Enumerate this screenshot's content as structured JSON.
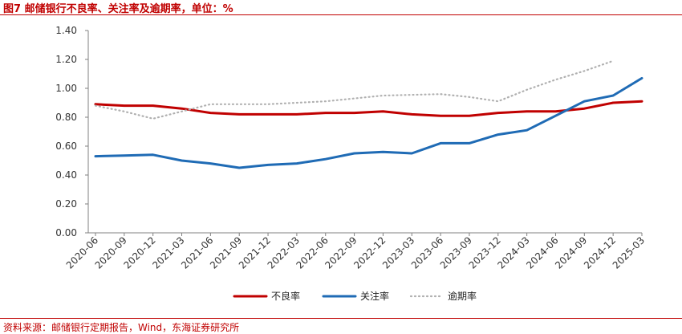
{
  "header": {
    "title": "图7 邮储银行不良率、关注率及逾期率，单位：%"
  },
  "footer": {
    "source": "资料来源：邮储银行定期报告，Wind，东海证券研究所"
  },
  "colors": {
    "npl": "#c00000",
    "attention": "#1f6bb5",
    "overdue": "#b0b0b0",
    "accent": "#c00000"
  },
  "chart_data": {
    "type": "line",
    "title": "图7 邮储银行不良率、关注率及逾期率，单位：%",
    "xlabel": "",
    "ylabel": "",
    "ylim": [
      0,
      1.4
    ],
    "yticks": [
      "0.00",
      "0.20",
      "0.40",
      "0.60",
      "0.80",
      "1.00",
      "1.20",
      "1.40"
    ],
    "grid": false,
    "legend_position": "bottom",
    "categories": [
      "2020-06",
      "2020-09",
      "2020-12",
      "2021-03",
      "2021-06",
      "2021-09",
      "2021-12",
      "2022-03",
      "2022-06",
      "2022-09",
      "2022-12",
      "2023-03",
      "2023-06",
      "2023-09",
      "2023-12",
      "2024-03",
      "2024-06",
      "2024-09",
      "2024-12",
      "2025-03"
    ],
    "series": [
      {
        "name": "不良率",
        "style": "solid",
        "color": "#c00000",
        "values": [
          0.89,
          0.88,
          0.88,
          0.86,
          0.83,
          0.82,
          0.82,
          0.82,
          0.83,
          0.83,
          0.84,
          0.82,
          0.81,
          0.81,
          0.83,
          0.84,
          0.84,
          0.86,
          0.9,
          0.91
        ]
      },
      {
        "name": "关注率",
        "style": "solid",
        "color": "#1f6bb5",
        "values": [
          0.53,
          0.535,
          0.54,
          0.5,
          0.48,
          0.45,
          0.47,
          0.48,
          0.51,
          0.55,
          0.56,
          0.55,
          0.62,
          0.62,
          0.68,
          0.71,
          0.81,
          0.91,
          0.95,
          1.07
        ]
      },
      {
        "name": "逾期率",
        "style": "dotted",
        "color": "#b0b0b0",
        "values": [
          0.88,
          0.84,
          0.79,
          0.84,
          0.89,
          0.89,
          0.89,
          0.9,
          0.91,
          0.93,
          0.95,
          0.955,
          0.96,
          0.94,
          0.91,
          0.99,
          1.06,
          1.12,
          1.19,
          null
        ]
      }
    ]
  }
}
